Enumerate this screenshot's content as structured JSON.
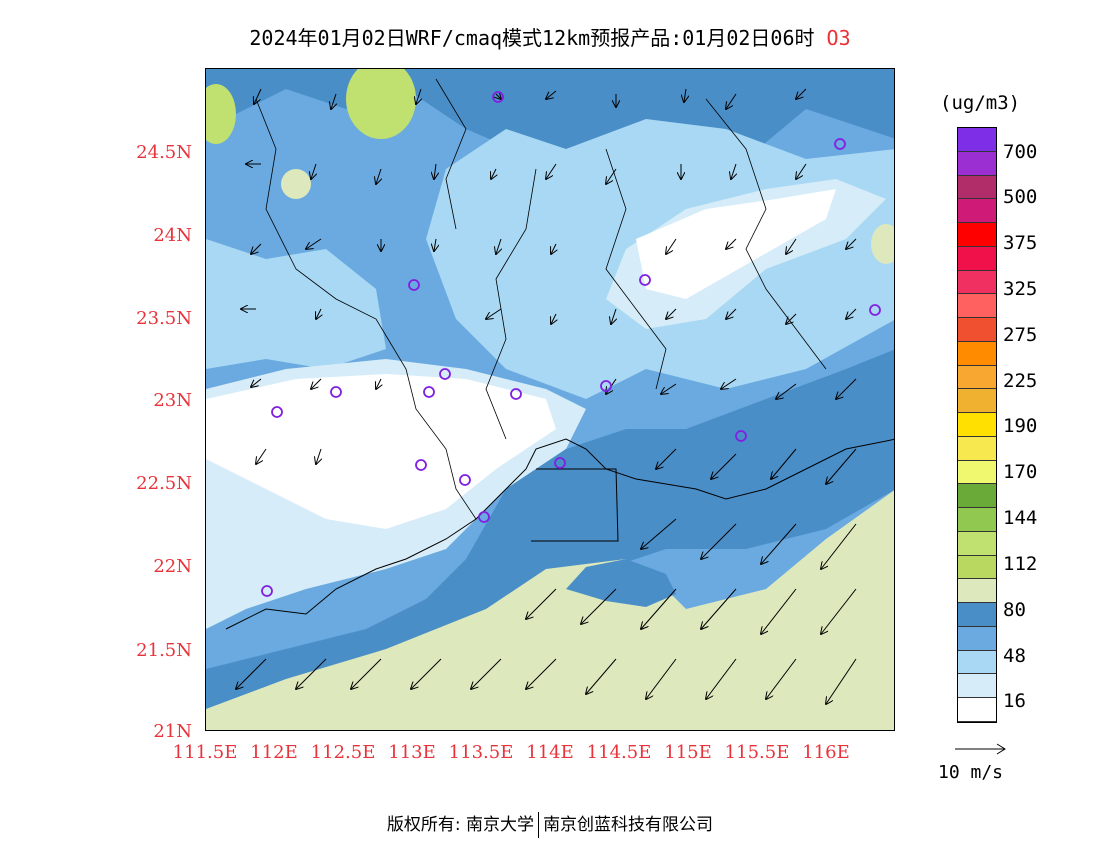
{
  "title": {
    "main": "2024年01月02日WRF/cmaq模式12km预报产品:01月02日06时",
    "species": "O3"
  },
  "axes": {
    "y_ticks": [
      "24.5N",
      "24N",
      "23.5N",
      "23N",
      "22.5N",
      "22N",
      "21.5N",
      "21N"
    ],
    "x_ticks": [
      "111.5E",
      "112E",
      "112.5E",
      "113E",
      "113.5E",
      "114E",
      "114.5E",
      "115E",
      "115.5E",
      "116E"
    ]
  },
  "colorbar": {
    "unit": "(ug/m3)",
    "labels": [
      "700",
      "500",
      "375",
      "325",
      "275",
      "225",
      "190",
      "170",
      "144",
      "112",
      "80",
      "48",
      "16"
    ],
    "colors": [
      "#7e2ee6",
      "#9b2fd1",
      "#b02d6a",
      "#d01a78",
      "#ff0000",
      "#f0104a",
      "#f03060",
      "#ff6060",
      "#f05030",
      "#ff8c00",
      "#f8a830",
      "#f0b030",
      "#ffe000",
      "#f8e850",
      "#f0f870",
      "#6aaa38",
      "#90c850",
      "#c0e070",
      "#b8d860",
      "#dde8bc",
      "#4a8ec8",
      "#6aaae0",
      "#a8d8f4",
      "#d6ecf8",
      "#ffffff"
    ]
  },
  "wind_legend": "10 m/s",
  "footer": {
    "left": "版权所有: 南京大学",
    "right": "南京创蓝科技有限公司"
  },
  "map": {
    "stations": 17,
    "ocean_color": "#dde8bc",
    "high_color": "#4a8ec8"
  }
}
